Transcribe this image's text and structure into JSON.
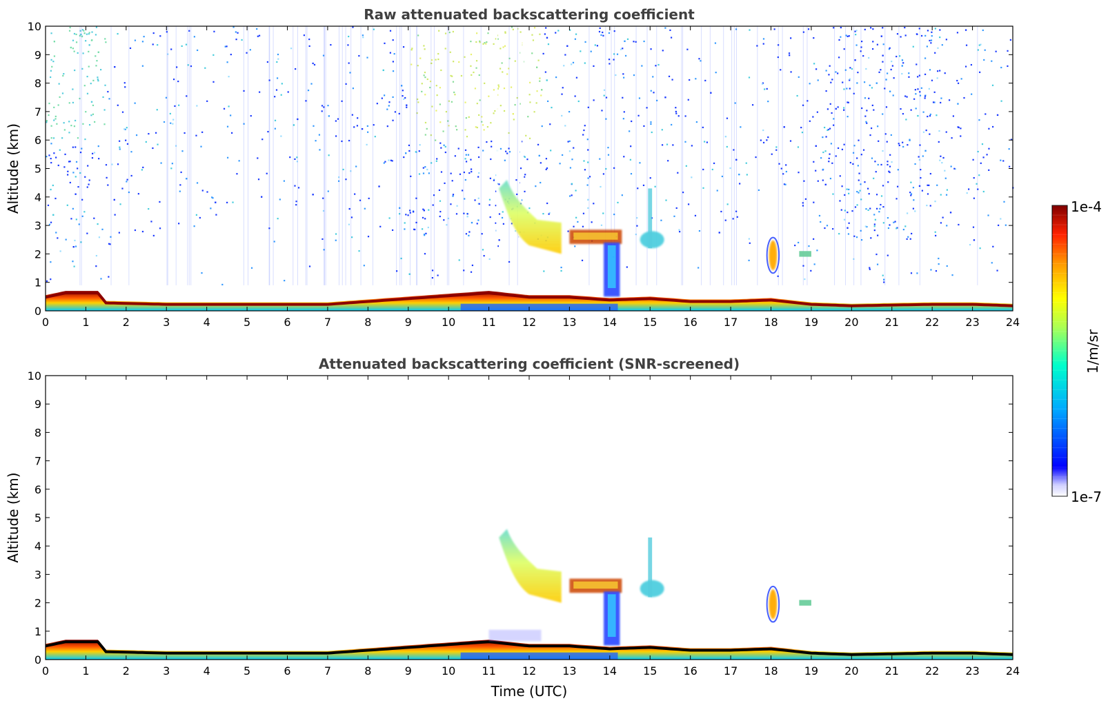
{
  "chart_data": [
    {
      "type": "heatmap",
      "title": "Raw attenuated backscattering coefficient",
      "xlabel": "",
      "ylabel": "Altitude (km)",
      "xlim": [
        0,
        24
      ],
      "ylim": [
        0,
        10
      ],
      "xticks": [
        "0",
        "1",
        "2",
        "3",
        "4",
        "5",
        "6",
        "7",
        "8",
        "9",
        "10",
        "11",
        "12",
        "13",
        "14",
        "15",
        "16",
        "17",
        "18",
        "19",
        "20",
        "21",
        "22",
        "23",
        "24"
      ],
      "yticks": [
        "0",
        "1",
        "2",
        "3",
        "4",
        "5",
        "6",
        "7",
        "8",
        "9",
        "10"
      ],
      "grid": false,
      "boundary_layer_top_km": [
        [
          0,
          0.55
        ],
        [
          0.5,
          0.7
        ],
        [
          1.3,
          0.7
        ],
        [
          1.5,
          0.35
        ],
        [
          3,
          0.3
        ],
        [
          7,
          0.3
        ],
        [
          8,
          0.4
        ],
        [
          9,
          0.5
        ],
        [
          11,
          0.7
        ],
        [
          12,
          0.55
        ],
        [
          13,
          0.55
        ],
        [
          14,
          0.45
        ],
        [
          15,
          0.5
        ],
        [
          16,
          0.4
        ],
        [
          17,
          0.4
        ],
        [
          18,
          0.45
        ],
        [
          19,
          0.3
        ],
        [
          20,
          0.25
        ],
        [
          22,
          0.3
        ],
        [
          23,
          0.3
        ],
        [
          24,
          0.25
        ]
      ],
      "features": [
        {
          "name": "aerosol layer",
          "x": [
            11.2,
            12.8
          ],
          "y_km": [
            2.2,
            4.3
          ]
        },
        {
          "name": "cloud layer",
          "x": [
            13.0,
            14.3
          ],
          "y_km": [
            2.3,
            2.8
          ]
        },
        {
          "name": "cloud",
          "x": [
            14.9,
            15.4
          ],
          "y_km": [
            2.2,
            2.8
          ]
        },
        {
          "name": "cloud",
          "x": [
            18.0,
            18.1
          ],
          "y_km": [
            1.4,
            2.4
          ]
        },
        {
          "name": "cloud",
          "x": [
            18.7,
            19.0
          ],
          "y_km": [
            1.9,
            2.1
          ]
        }
      ]
    },
    {
      "type": "heatmap",
      "title": "Attenuated backscattering coefficient (SNR-screened)",
      "xlabel": "Time (UTC)",
      "ylabel": "Altitude (km)",
      "xlim": [
        0,
        24
      ],
      "ylim": [
        0,
        10
      ],
      "xticks": [
        "0",
        "1",
        "2",
        "3",
        "4",
        "5",
        "6",
        "7",
        "8",
        "9",
        "10",
        "11",
        "12",
        "13",
        "14",
        "15",
        "16",
        "17",
        "18",
        "19",
        "20",
        "21",
        "22",
        "23",
        "24"
      ],
      "yticks": [
        "0",
        "1",
        "2",
        "3",
        "4",
        "5",
        "6",
        "7",
        "8",
        "9",
        "10"
      ],
      "grid": false
    }
  ],
  "colorbar": {
    "top_label": "1e-4",
    "bottom_label": "1e-7",
    "unit_label": "1/m/sr",
    "colormap": "jet",
    "colors": [
      "#ffffff",
      "#ccccff",
      "#0000ff",
      "#00aaff",
      "#00ffcc",
      "#aaff55",
      "#ffff00",
      "#ff9900",
      "#ff2200",
      "#800000"
    ]
  }
}
